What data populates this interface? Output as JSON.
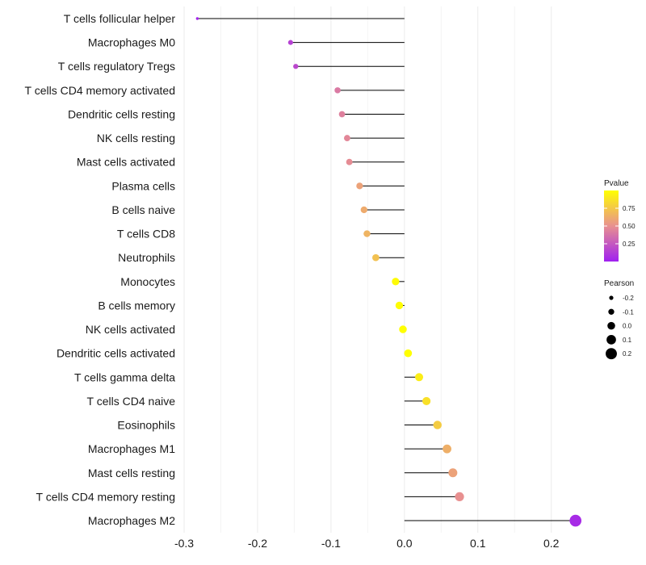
{
  "chart_data": {
    "type": "lollipop",
    "title": "",
    "xlabel": "",
    "ylabel": "",
    "xlim": [
      -0.3,
      0.23
    ],
    "xticks": [
      -0.3,
      -0.2,
      -0.1,
      0.0,
      0.1,
      0.2
    ],
    "xtick_labels": [
      "-0.3",
      "-0.2",
      "-0.1",
      "0.0",
      "0.1",
      "0.2"
    ],
    "grid": true,
    "categories": [
      "T cells follicular helper",
      "Macrophages M0",
      "T cells regulatory  Tregs",
      "T cells CD4 memory activated",
      "Dendritic cells resting",
      "NK cells resting",
      "Mast cells activated",
      "Plasma cells",
      "B cells naive",
      "T cells CD8",
      "Neutrophils",
      "Monocytes",
      "B cells memory",
      "NK cells activated",
      "Dendritic cells activated",
      "T cells gamma delta",
      "T cells CD4 naive",
      "Eosinophils",
      "Macrophages M1",
      "Mast cells resting",
      "T cells CD4 memory resting",
      "Macrophages M2"
    ],
    "pearson": [
      -0.282,
      -0.155,
      -0.148,
      -0.091,
      -0.085,
      -0.078,
      -0.075,
      -0.061,
      -0.055,
      -0.051,
      -0.039,
      -0.012,
      -0.007,
      -0.002,
      0.005,
      0.02,
      0.03,
      0.045,
      0.058,
      0.066,
      0.075,
      0.233
    ],
    "pvalue": [
      0.02,
      0.15,
      0.18,
      0.4,
      0.43,
      0.46,
      0.48,
      0.58,
      0.62,
      0.66,
      0.72,
      0.98,
      0.99,
      1.0,
      1.0,
      0.92,
      0.86,
      0.77,
      0.64,
      0.58,
      0.5,
      0.05
    ],
    "color_legend": {
      "title": "Pvalue",
      "range": [
        0.0,
        1.0
      ],
      "ticks": [
        0.25,
        0.5,
        0.75
      ],
      "tick_labels": [
        "0.25",
        "0.50",
        "0.75"
      ],
      "low_color": "#a020f0",
      "mid_color": "#e89090",
      "high_color": "#ffff00"
    },
    "size_legend": {
      "title": "Pearson",
      "values": [
        -0.2,
        -0.1,
        0.0,
        0.1,
        0.2
      ],
      "labels": [
        "-0.2",
        "-0.1",
        "0.0",
        "0.1",
        "0.2"
      ]
    },
    "colors": {
      "stem": "#000000",
      "grid": "#ebebeb"
    }
  }
}
